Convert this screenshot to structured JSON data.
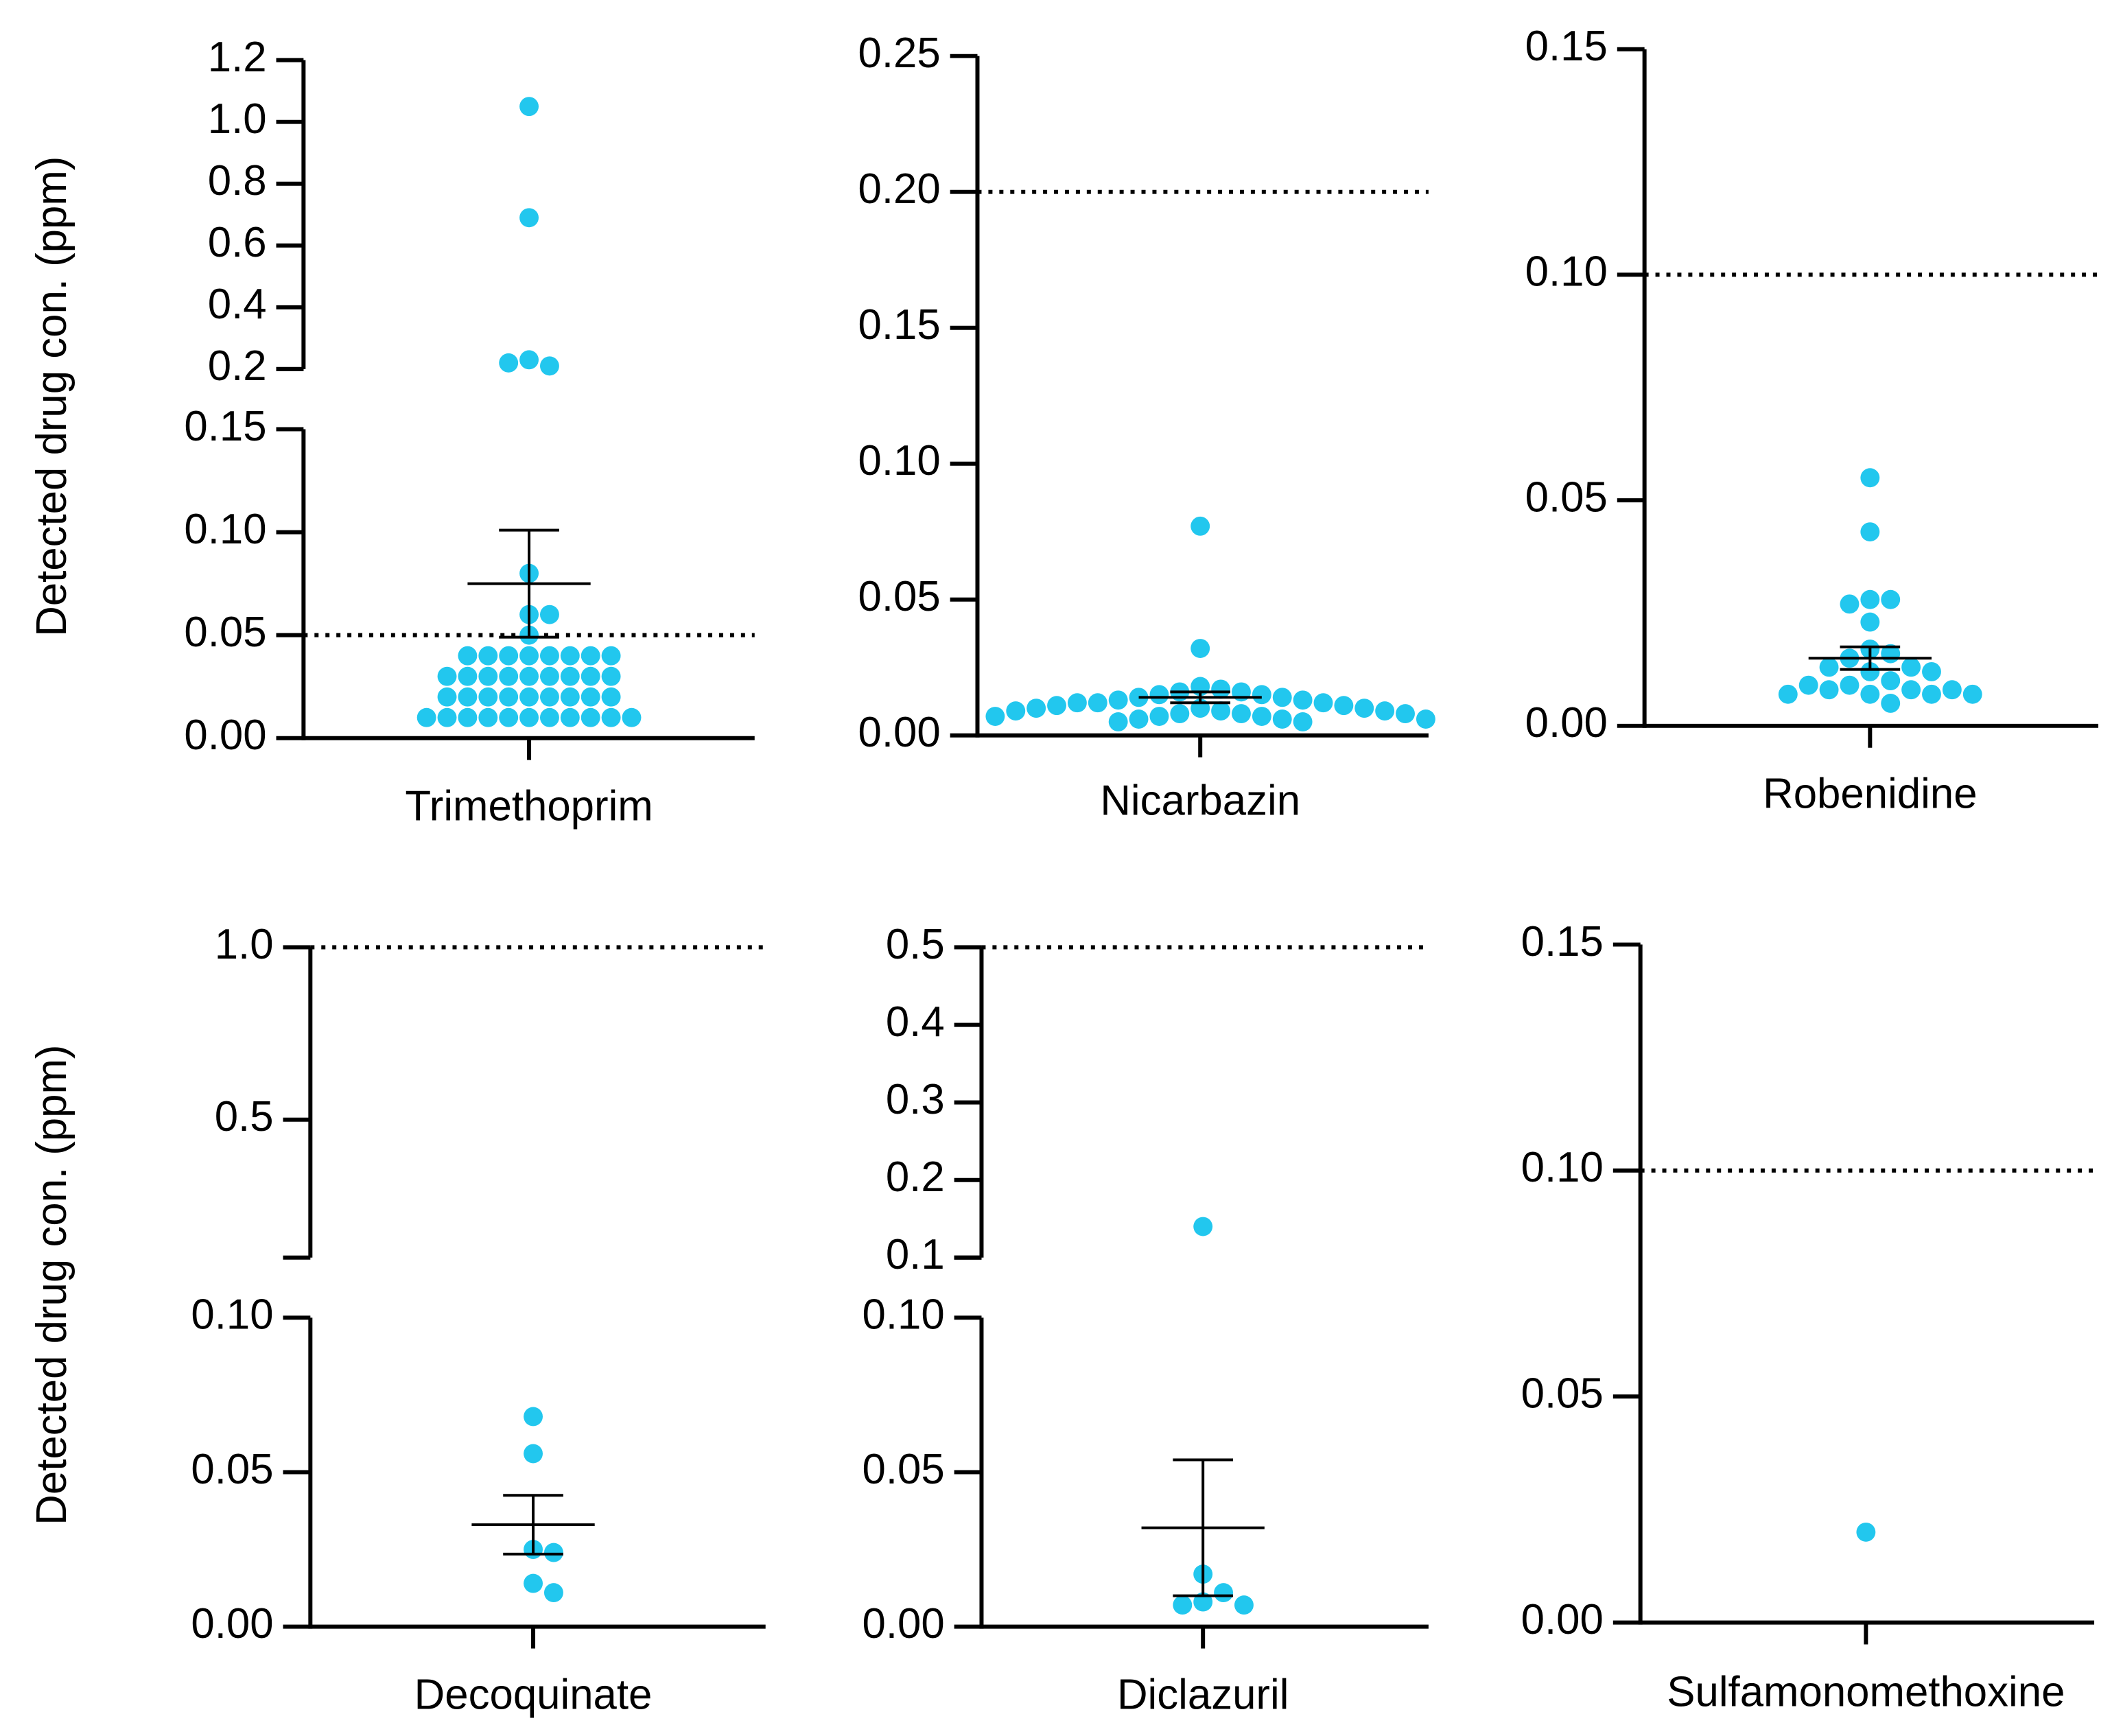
{
  "chart_data": [
    {
      "type": "dotplot",
      "category": "Trimethoprim",
      "ylabel": "Detected drug con. (ppm)",
      "color": "#22c7ee",
      "segments": [
        {
          "ylim": [
            0,
            0.15
          ],
          "yticks": [
            {
              "value": 0,
              "label": "0.00"
            },
            {
              "value": 0.05,
              "label": "0.05"
            },
            {
              "value": 0.1,
              "label": "0.10"
            },
            {
              "value": 0.15,
              "label": "0.15"
            }
          ]
        },
        {
          "ylim": [
            0.2,
            1.2
          ],
          "yticks": [
            0.2,
            0.4,
            0.6,
            0.8,
            {
              "value": 1.0,
              "label": "1.0"
            },
            1.2
          ]
        }
      ],
      "threshold": 0.05,
      "values": [
        1.05,
        0.69,
        0.23,
        0.21,
        0.22,
        0.08,
        0.06,
        0.06,
        0.05,
        0.04,
        0.04,
        0.04,
        0.04,
        0.04,
        0.04,
        0.04,
        0.04,
        0.03,
        0.03,
        0.03,
        0.03,
        0.03,
        0.03,
        0.03,
        0.03,
        0.03,
        0.02,
        0.02,
        0.02,
        0.02,
        0.02,
        0.02,
        0.02,
        0.02,
        0.02,
        0.01,
        0.01,
        0.01,
        0.01,
        0.01,
        0.01,
        0.01,
        0.01,
        0.01,
        0.01,
        0.01
      ],
      "mean": 0.075,
      "sem": 0.026
    },
    {
      "type": "dotplot",
      "category": "Nicarbazin",
      "color": "#22c7ee",
      "segments": [
        {
          "ylim": [
            0,
            0.25
          ],
          "yticks": [
            {
              "value": 0,
              "label": "0.00"
            },
            {
              "value": 0.05,
              "label": "0.05"
            },
            {
              "value": 0.1,
              "label": "0.10"
            },
            {
              "value": 0.15,
              "label": "0.15"
            },
            {
              "value": 0.2,
              "label": "0.20"
            },
            {
              "value": 0.25,
              "label": "0.25"
            }
          ]
        }
      ],
      "threshold": 0.2,
      "values": [
        0.077,
        0.032,
        0.018,
        0.017,
        0.016,
        0.016,
        0.015,
        0.015,
        0.014,
        0.014,
        0.013,
        0.013,
        0.012,
        0.012,
        0.012,
        0.011,
        0.011,
        0.01,
        0.01,
        0.01,
        0.009,
        0.009,
        0.009,
        0.008,
        0.008,
        0.008,
        0.007,
        0.007,
        0.007,
        0.006,
        0.006,
        0.006,
        0.005,
        0.005
      ],
      "mean": 0.014,
      "sem": 0.002
    },
    {
      "type": "dotplot",
      "category": "Robenidine",
      "color": "#22c7ee",
      "segments": [
        {
          "ylim": [
            0,
            0.15
          ],
          "yticks": [
            {
              "value": 0,
              "label": "0.00"
            },
            {
              "value": 0.05,
              "label": "0.05"
            },
            {
              "value": 0.1,
              "label": "0.10"
            },
            {
              "value": 0.15,
              "label": "0.15"
            }
          ]
        }
      ],
      "threshold": 0.1,
      "values": [
        0.055,
        0.043,
        0.028,
        0.028,
        0.027,
        0.023,
        0.017,
        0.016,
        0.015,
        0.013,
        0.013,
        0.012,
        0.012,
        0.01,
        0.009,
        0.009,
        0.008,
        0.008,
        0.008,
        0.007,
        0.007,
        0.007,
        0.007,
        0.005
      ],
      "mean": 0.015,
      "sem": 0.0025
    },
    {
      "type": "dotplot",
      "category": "Decoquinate",
      "ylabel": "Detected drug con. (ppm)",
      "color": "#22c7ee",
      "segments": [
        {
          "ylim": [
            0,
            0.1
          ],
          "yticks": [
            {
              "value": 0,
              "label": "0.00"
            },
            {
              "value": 0.05,
              "label": "0.05"
            },
            {
              "value": 0.1,
              "label": "0.10"
            }
          ]
        },
        {
          "ylim": [
            0.1,
            1.0
          ],
          "yticks": [
            0.5,
            {
              "value": 1.0,
              "label": "1.0"
            }
          ]
        }
      ],
      "threshold": 1.0,
      "values": [
        0.068,
        0.056,
        0.025,
        0.024,
        0.014,
        0.011
      ],
      "mean": 0.033,
      "sem": 0.0095
    },
    {
      "type": "dotplot",
      "category": "Diclazuril",
      "color": "#22c7ee",
      "segments": [
        {
          "ylim": [
            0,
            0.1
          ],
          "yticks": [
            {
              "value": 0,
              "label": "0.00"
            },
            {
              "value": 0.05,
              "label": "0.05"
            },
            {
              "value": 0.1,
              "label": "0.10"
            }
          ]
        },
        {
          "ylim": [
            0.1,
            0.5
          ],
          "yticks": [
            0.1,
            0.2,
            0.3,
            0.4,
            0.5
          ]
        }
      ],
      "threshold": 0.5,
      "values": [
        0.14,
        0.017,
        0.011,
        0.008,
        0.007,
        0.007
      ],
      "mean": 0.032,
      "sem": 0.022
    },
    {
      "type": "dotplot",
      "category": "Sulfamonomethoxine",
      "color": "#22c7ee",
      "segments": [
        {
          "ylim": [
            0,
            0.15
          ],
          "yticks": [
            {
              "value": 0,
              "label": "0.00"
            },
            {
              "value": 0.05,
              "label": "0.05"
            },
            {
              "value": 0.1,
              "label": "0.10"
            },
            {
              "value": 0.15,
              "label": "0.15"
            }
          ]
        }
      ],
      "threshold": 0.1,
      "values": [
        0.02
      ]
    }
  ]
}
